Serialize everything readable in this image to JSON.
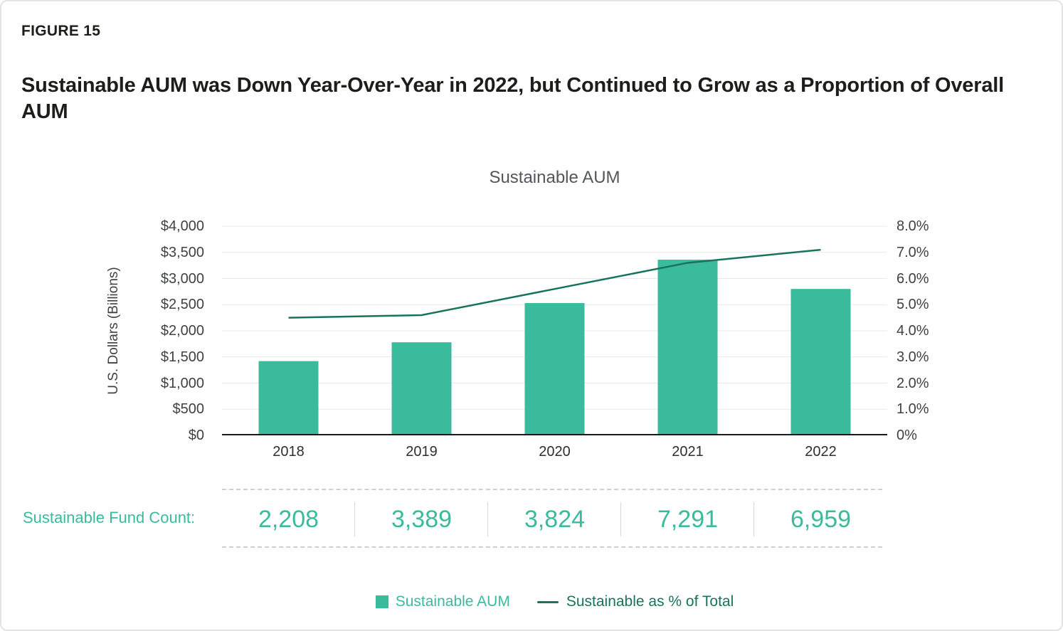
{
  "figure_label": "FIGURE 15",
  "title": "Sustainable AUM was Down Year-Over-Year in 2022, but Continued to Grow as a Proportion of Overall AUM",
  "chart_data": {
    "type": "bar",
    "title": "Sustainable AUM",
    "categories": [
      "2018",
      "2019",
      "2020",
      "2021",
      "2022"
    ],
    "series": [
      {
        "name": "Sustainable AUM",
        "kind": "bar",
        "axis": "left",
        "color": "#3ABB9C",
        "values": [
          1420,
          1780,
          2530,
          3360,
          2800
        ]
      },
      {
        "name": "Sustainable as % of Total",
        "kind": "line",
        "axis": "right",
        "color": "#17735C",
        "values": [
          4.5,
          4.6,
          5.6,
          6.6,
          7.1
        ]
      }
    ],
    "xlabel": "",
    "ylabel_left": "U.S. Dollars (Billions)",
    "ylabel_right": "",
    "y_left_range": [
      0,
      4000
    ],
    "y_right_range": [
      0,
      8
    ],
    "y_left_ticks": [
      "$4,000",
      "$3,500",
      "$3,000",
      "$2,500",
      "$2,000",
      "$1,500",
      "$1,000",
      "$500",
      "$0"
    ],
    "y_right_ticks": [
      "8.0%",
      "7.0%",
      "6.0%",
      "5.0%",
      "4.0%",
      "3.0%",
      "2.0%",
      "1.0%",
      "0%"
    ],
    "grid": true,
    "legend_position": "bottom"
  },
  "fund_count": {
    "label": "Sustainable Fund Count:",
    "values": [
      "2,208",
      "3,389",
      "3,824",
      "7,291",
      "6,959"
    ]
  },
  "legend": {
    "bar": {
      "label": "Sustainable AUM",
      "color": "#3ABB9C"
    },
    "line": {
      "label": "Sustainable as % of Total",
      "color": "#17735C"
    }
  },
  "colors": {
    "bar_green": "#3ABB9C",
    "line_green": "#17735C",
    "title_text": "#1D1D1B",
    "axis_text": "#3F4142",
    "chart_title_text": "#55565A",
    "gridline": "#E8E8E8",
    "axis_line": "#1A1A1A",
    "dashed_line": "#CFCFCF"
  }
}
